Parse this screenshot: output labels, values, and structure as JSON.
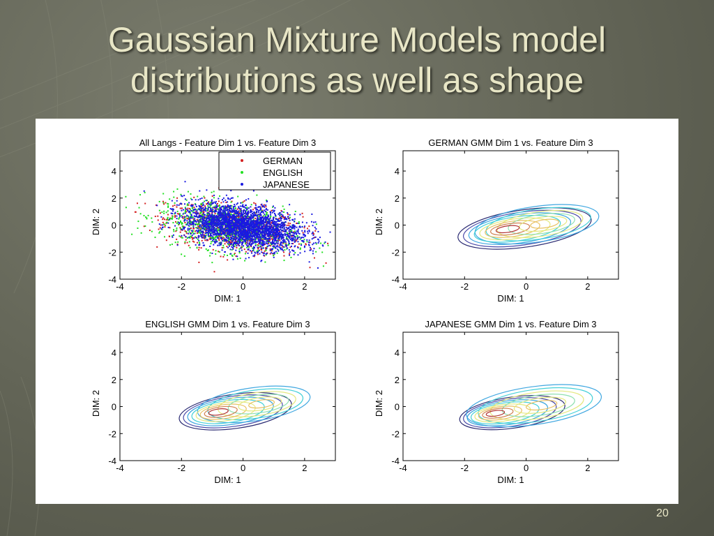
{
  "slide": {
    "title_line1": "Gaussian Mixture Models model",
    "title_line2": "distributions as well as shape",
    "page_number": "20"
  },
  "colors": {
    "background": "#626456",
    "title": "#e8e6c6",
    "german": "#d42020",
    "english": "#22e022",
    "japanese": "#1a1ae0"
  },
  "chart_data": [
    {
      "type": "scatter",
      "title": "All Langs - Feature Dim 1 vs. Feature Dim 3",
      "xlabel": "DIM: 1",
      "ylabel": "DIM: 2",
      "xlim": [
        -4,
        3
      ],
      "ylim": [
        -4,
        5.5
      ],
      "xticks": [
        -4,
        -2,
        0,
        2
      ],
      "yticks": [
        -4,
        -2,
        0,
        2,
        4
      ],
      "legend_position": "top-right",
      "series": [
        {
          "name": "GERMAN",
          "color": "#d42020",
          "center": [
            -0.3,
            -0.2
          ],
          "spread": [
            1.1,
            0.95
          ]
        },
        {
          "name": "ENGLISH",
          "color": "#22e022",
          "center": [
            -0.5,
            -0.1
          ],
          "spread": [
            1.1,
            1.0
          ]
        },
        {
          "name": "JAPANESE",
          "color": "#1a1ae0",
          "center": [
            0.0,
            -0.1
          ],
          "spread": [
            0.95,
            0.85
          ]
        }
      ]
    },
    {
      "type": "contour",
      "title": "GERMAN GMM Dim 1 vs. Feature Dim 3",
      "xlabel": "DIM: 1",
      "ylabel": "DIM: 2",
      "xlim": [
        -4,
        3
      ],
      "ylim": [
        -4,
        5.5
      ],
      "xticks": [
        -4,
        -2,
        0,
        2
      ],
      "yticks": [
        -4,
        -2,
        0,
        2,
        4
      ],
      "modes": [
        {
          "center": [
            -0.6,
            -0.3
          ],
          "spread": [
            0.95,
            0.6
          ]
        },
        {
          "center": [
            0.6,
            0.1
          ],
          "spread": [
            1.1,
            0.75
          ]
        }
      ]
    },
    {
      "type": "contour",
      "title": "ENGLISH GMM Dim 1 vs. Feature Dim 3",
      "xlabel": "DIM: 1",
      "ylabel": "DIM: 2",
      "xlim": [
        -4,
        3
      ],
      "ylim": [
        -4,
        5.5
      ],
      "xticks": [
        -4,
        -2,
        0,
        2
      ],
      "yticks": [
        -4,
        -2,
        0,
        2,
        4
      ],
      "modes": [
        {
          "center": [
            -0.8,
            -0.4
          ],
          "spread": [
            0.8,
            0.55
          ]
        },
        {
          "center": [
            0.6,
            0.2
          ],
          "spread": [
            1.0,
            0.7
          ]
        }
      ]
    },
    {
      "type": "contour",
      "title": "JAPANESE GMM Dim 1 vs. Feature Dim 3",
      "xlabel": "DIM: 1",
      "ylabel": "DIM: 2",
      "xlim": [
        -4,
        3
      ],
      "ylim": [
        -4,
        5.5
      ],
      "xticks": [
        -4,
        -2,
        0,
        2
      ],
      "yticks": [
        -4,
        -2,
        0,
        2,
        4
      ],
      "modes": [
        {
          "center": [
            -1.0,
            -0.5
          ],
          "spread": [
            0.75,
            0.5
          ]
        },
        {
          "center": [
            0.5,
            0.1
          ],
          "spread": [
            1.2,
            0.8
          ]
        }
      ]
    }
  ]
}
